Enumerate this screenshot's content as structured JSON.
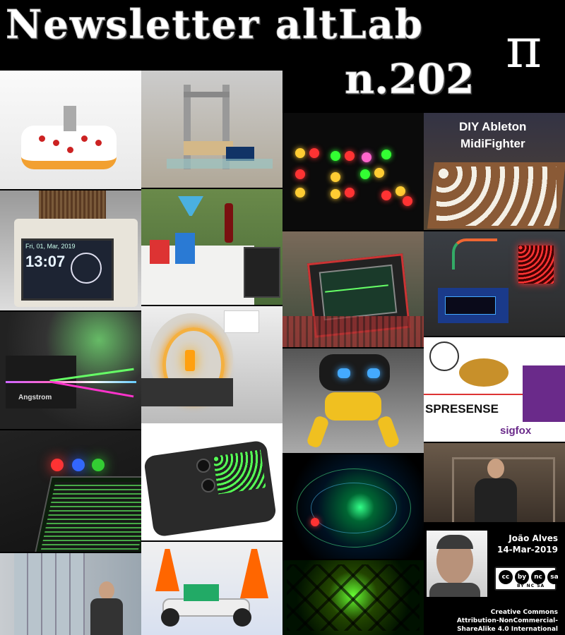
{
  "header": {
    "title": "Newsletter altLab",
    "issue": "n.202",
    "logo_symbol": "π"
  },
  "tiles": {
    "ableton": {
      "line1": "DIY Ableton",
      "line2": "MidiFighter"
    },
    "angstrom": {
      "label": "Angstrom"
    },
    "spresense": {
      "label": "SPRESENSE",
      "brand": "sigfox"
    },
    "clock": {
      "date": "Fri, 01, Mar, 2019",
      "time": "13:07"
    }
  },
  "author": {
    "name": "João Alves",
    "date": "14-Mar-2019"
  },
  "license": {
    "badge_icons": [
      "cc",
      "by",
      "nc",
      "sa"
    ],
    "badge_text": "BY  NC  SA",
    "line1": "Creative Commons",
    "line2": "Attribution-NonCommercial-",
    "line3": "ShareAlike 4.0 International"
  }
}
